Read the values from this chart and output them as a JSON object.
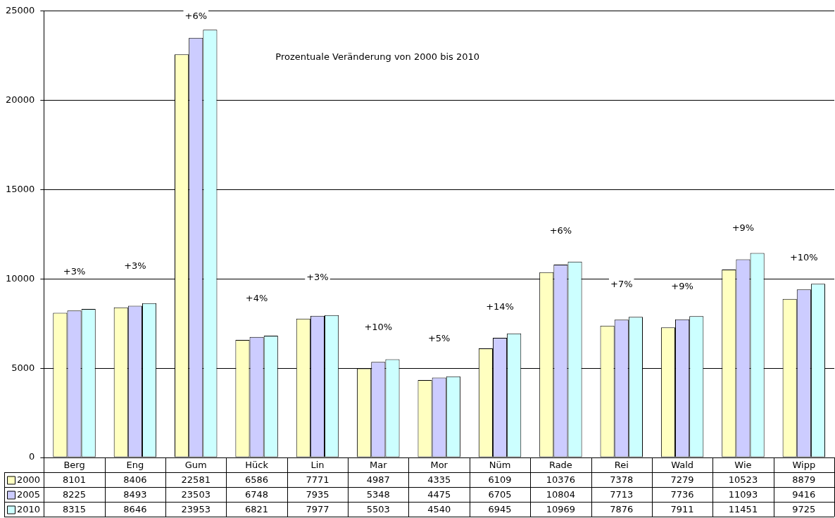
{
  "chart_data": {
    "type": "bar",
    "categories": [
      "Berg",
      "Eng",
      "Gum",
      "Hück",
      "Lin",
      "Mar",
      "Mor",
      "Nüm",
      "Rade",
      "Rei",
      "Wald",
      "Wie",
      "Wipp"
    ],
    "series": [
      {
        "name": "2000",
        "color": "#ffffc0",
        "values": [
          8101,
          8406,
          22581,
          6586,
          7771,
          4987,
          4335,
          6109,
          10376,
          7378,
          7279,
          10523,
          8879
        ]
      },
      {
        "name": "2005",
        "color": "#ccccff",
        "values": [
          8225,
          8493,
          23503,
          6748,
          7935,
          5348,
          4475,
          6705,
          10804,
          7713,
          7736,
          11093,
          9416
        ]
      },
      {
        "name": "2010",
        "color": "#ccffff",
        "values": [
          8315,
          8646,
          23953,
          6821,
          7977,
          5503,
          4540,
          6945,
          10969,
          7876,
          7911,
          11451,
          9725
        ]
      }
    ],
    "ylim": [
      0,
      25000
    ],
    "yticks": [
      0,
      5000,
      10000,
      15000,
      20000,
      25000
    ],
    "grid": "y",
    "legend": "bottom",
    "data_labels": true,
    "annotations": [
      "Prozentuale Veränderung von 2000 bis 2010",
      "+3%",
      "+3%",
      "+6%",
      "+4%",
      "+3%",
      "+10%",
      "+5%",
      "+14%",
      "+6%",
      "+7%",
      "+9%",
      "+9%",
      "+10%"
    ]
  }
}
